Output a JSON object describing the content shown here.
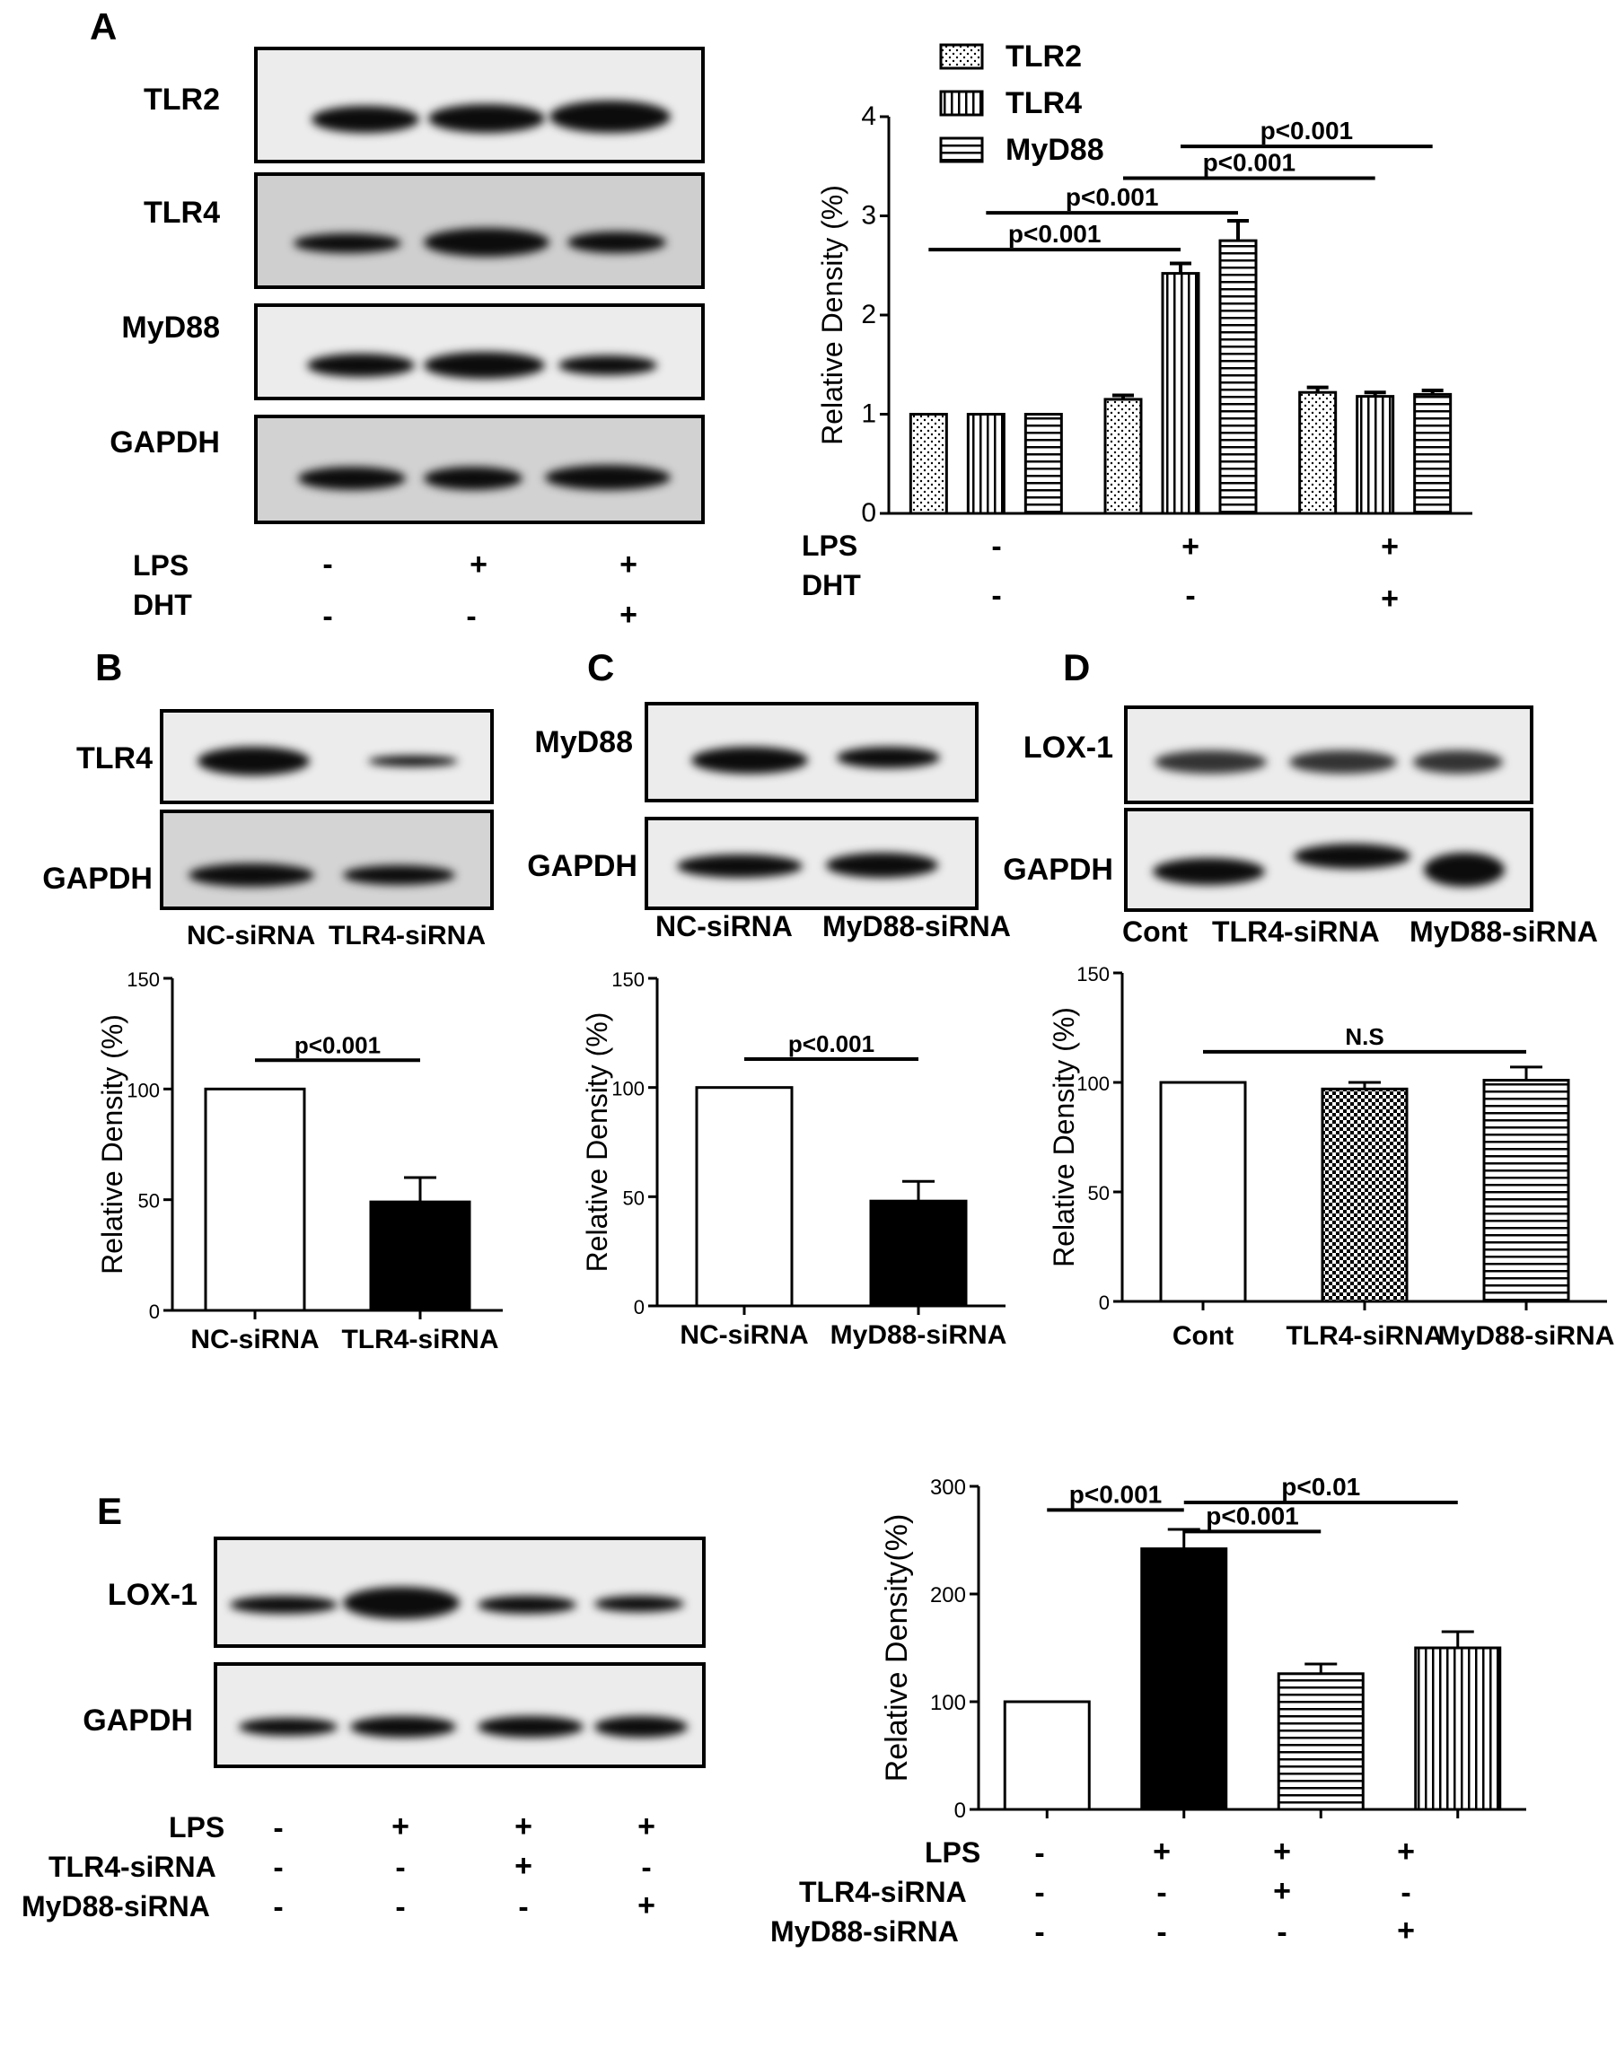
{
  "panels": {
    "A": {
      "letter": "A",
      "blot_labels": [
        "TLR2",
        "TLR4",
        "MyD88",
        "GAPDH"
      ],
      "conditions": {
        "rows": [
          {
            "label": "LPS",
            "signs": [
              "-",
              "+",
              "+"
            ]
          },
          {
            "label": "DHT",
            "signs": [
              "-",
              "-",
              "+"
            ]
          }
        ]
      },
      "chart_conditions": {
        "rows": [
          {
            "label": "LPS",
            "signs": [
              "-",
              "+",
              "+"
            ]
          },
          {
            "label": "DHT",
            "signs": [
              "-",
              "-",
              "+"
            ]
          }
        ]
      }
    },
    "B": {
      "letter": "B",
      "blot_labels": [
        "TLR4",
        "GAPDH"
      ],
      "lane_labels": [
        "NC-siRNA",
        "TLR4-siRNA"
      ]
    },
    "C": {
      "letter": "C",
      "blot_labels": [
        "MyD88",
        "GAPDH"
      ],
      "lane_labels": [
        "NC-siRNA",
        "MyD88-siRNA"
      ]
    },
    "D": {
      "letter": "D",
      "blot_labels": [
        "LOX-1",
        "GAPDH"
      ],
      "lane_labels": [
        "Cont",
        "TLR4-siRNA",
        "MyD88-siRNA"
      ]
    },
    "E": {
      "letter": "E",
      "blot_labels": [
        "LOX-1",
        "GAPDH"
      ],
      "conditions": {
        "rows": [
          {
            "label": "LPS",
            "signs": [
              "-",
              "+",
              "+",
              "+"
            ]
          },
          {
            "label": "TLR4-siRNA",
            "signs": [
              "-",
              "-",
              "+",
              "-"
            ]
          },
          {
            "label": "MyD88-siRNA",
            "signs": [
              "-",
              "-",
              "-",
              "+"
            ]
          }
        ]
      },
      "chart_conditions": {
        "rows": [
          {
            "label": "LPS",
            "signs": [
              "-",
              "+",
              "+",
              "+"
            ]
          },
          {
            "label": "TLR4-siRNA",
            "signs": [
              "-",
              "-",
              "+",
              "-"
            ]
          },
          {
            "label": "MyD88-siRNA",
            "signs": [
              "-",
              "-",
              "-",
              "+"
            ]
          }
        ]
      }
    }
  },
  "chart_data": [
    {
      "id": "A",
      "type": "bar",
      "ylabel": "Relative Density (%)",
      "ylim": [
        0,
        4
      ],
      "yticks": [
        "0",
        "1",
        "2",
        "3",
        "4"
      ],
      "legend_position": "top",
      "group_labels": [
        "",
        "",
        ""
      ],
      "series": [
        {
          "name": "TLR2",
          "pattern": "dots",
          "values": [
            1.0,
            1.15,
            1.22
          ],
          "errors": [
            0.0,
            0.04,
            0.05
          ]
        },
        {
          "name": "TLR4",
          "pattern": "vertical",
          "values": [
            1.0,
            2.42,
            1.18
          ],
          "errors": [
            0.0,
            0.1,
            0.04
          ]
        },
        {
          "name": "MyD88",
          "pattern": "horizontal",
          "values": [
            1.0,
            2.75,
            1.2
          ],
          "errors": [
            0.0,
            0.2,
            0.04
          ]
        }
      ],
      "annotations": [
        {
          "text": "p<0.001",
          "from": [
            0,
            0
          ],
          "to": [
            1,
            1
          ],
          "y": 2.66
        },
        {
          "text": "p<0.001",
          "from": [
            0,
            1
          ],
          "to": [
            1,
            2
          ],
          "y": 3.03
        },
        {
          "text": "p<0.001",
          "from": [
            1,
            0
          ],
          "to": [
            2,
            1
          ],
          "y": 3.38
        },
        {
          "text": "p<0.001",
          "from": [
            1,
            1
          ],
          "to": [
            2,
            2
          ],
          "y": 3.7
        }
      ]
    },
    {
      "id": "B",
      "type": "bar",
      "ylabel": "Relative Density (%)",
      "ylim": [
        0,
        150
      ],
      "yticks": [
        "0",
        "50",
        "100",
        "150"
      ],
      "categories": [
        "NC-siRNA",
        "TLR4-siRNA"
      ],
      "values": [
        100,
        49
      ],
      "errors": [
        0,
        11
      ],
      "fills": [
        "white",
        "black"
      ],
      "annotations": [
        {
          "text": "p<0.001",
          "from": 0,
          "to": 1,
          "y": 113
        }
      ]
    },
    {
      "id": "C",
      "type": "bar",
      "ylabel": "Relative Density (%)",
      "ylim": [
        0,
        150
      ],
      "yticks": [
        "0",
        "50",
        "100",
        "150"
      ],
      "categories": [
        "NC-siRNA",
        "MyD88-siRNA"
      ],
      "values": [
        100,
        48
      ],
      "errors": [
        0,
        9
      ],
      "fills": [
        "white",
        "black"
      ],
      "annotations": [
        {
          "text": "p<0.001",
          "from": 0,
          "to": 1,
          "y": 113
        }
      ]
    },
    {
      "id": "D",
      "type": "bar",
      "ylabel": "Relative Density (%)",
      "ylim": [
        0,
        150
      ],
      "yticks": [
        "0",
        "50",
        "100",
        "150"
      ],
      "categories": [
        "Cont",
        "TLR4-siRNA",
        "MyD88-siRNA"
      ],
      "values": [
        100,
        97,
        101
      ],
      "errors": [
        0,
        3,
        6
      ],
      "fills": [
        "white",
        "check",
        "horizontal"
      ],
      "annotations": [
        {
          "text": "N.S",
          "from": 0,
          "to": 2,
          "y": 114
        }
      ]
    },
    {
      "id": "E",
      "type": "bar",
      "ylabel": "Relative Density(%)",
      "ylim": [
        0,
        300
      ],
      "yticks": [
        "0",
        "100",
        "200",
        "300"
      ],
      "categories": [
        "",
        "",
        "",
        ""
      ],
      "values": [
        100,
        242,
        126,
        150
      ],
      "errors": [
        0,
        18,
        9,
        15
      ],
      "fills": [
        "white",
        "black",
        "horizontal",
        "vertical"
      ],
      "annotations": [
        {
          "text": "p<0.001",
          "from": 0,
          "to": 1,
          "y": 278
        },
        {
          "text": "p<0.001",
          "from": 1,
          "to": 2,
          "y": 258
        },
        {
          "text": "p<0.01",
          "from": 1,
          "to": 3,
          "y": 285
        }
      ]
    }
  ]
}
